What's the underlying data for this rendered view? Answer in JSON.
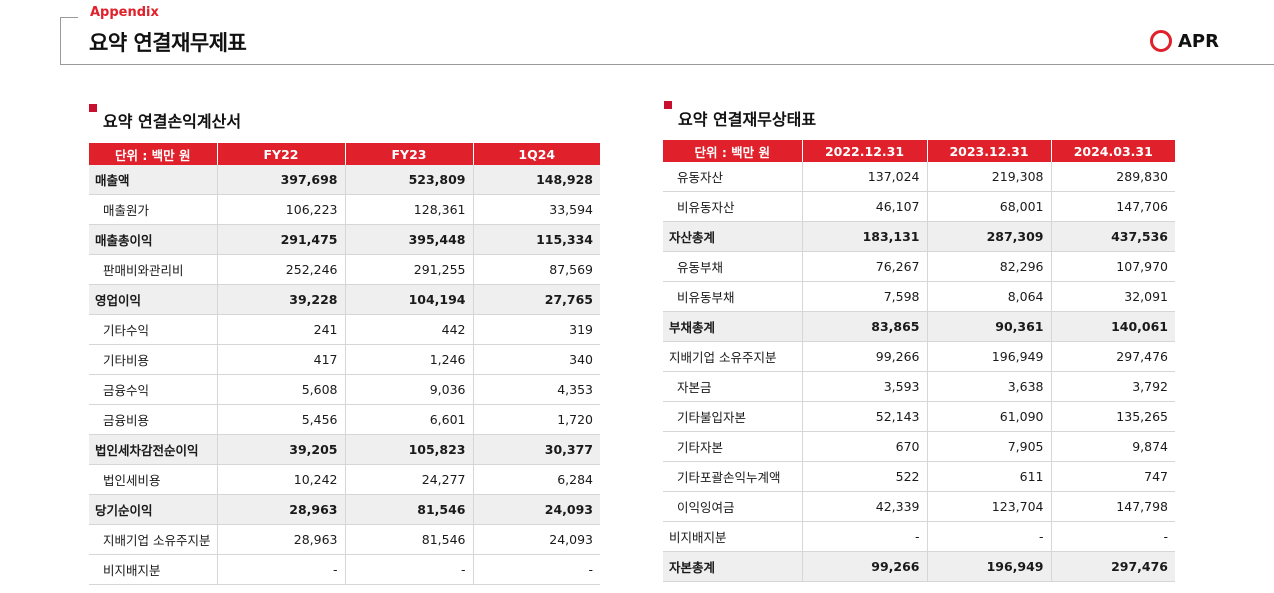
{
  "header": {
    "section": "Appendix",
    "title": "요약 연결재무제표",
    "logo": "APR"
  },
  "income": {
    "title": "요약 연결손익계산서",
    "columns": [
      "단위 : 백만 원",
      "FY22",
      "FY23",
      "1Q24"
    ],
    "rows": [
      {
        "label": "매출액",
        "values": [
          "397,698",
          "523,809",
          "148,928"
        ],
        "style": "bold"
      },
      {
        "label": "매출원가",
        "values": [
          "106,223",
          "128,361",
          "33,594"
        ],
        "style": "sub"
      },
      {
        "label": "매출총이익",
        "values": [
          "291,475",
          "395,448",
          "115,334"
        ],
        "style": "bold"
      },
      {
        "label": "판매비와관리비",
        "values": [
          "252,246",
          "291,255",
          "87,569"
        ],
        "style": "sub"
      },
      {
        "label": "영업이익",
        "values": [
          "39,228",
          "104,194",
          "27,765"
        ],
        "style": "bold"
      },
      {
        "label": "기타수익",
        "values": [
          "241",
          "442",
          "319"
        ],
        "style": "sub"
      },
      {
        "label": "기타비용",
        "values": [
          "417",
          "1,246",
          "340"
        ],
        "style": "sub"
      },
      {
        "label": "금융수익",
        "values": [
          "5,608",
          "9,036",
          "4,353"
        ],
        "style": "sub"
      },
      {
        "label": "금융비용",
        "values": [
          "5,456",
          "6,601",
          "1,720"
        ],
        "style": "sub"
      },
      {
        "label": "법인세차감전순이익",
        "values": [
          "39,205",
          "105,823",
          "30,377"
        ],
        "style": "bold"
      },
      {
        "label": "법인세비용",
        "values": [
          "10,242",
          "24,277",
          "6,284"
        ],
        "style": "sub"
      },
      {
        "label": "당기순이익",
        "values": [
          "28,963",
          "81,546",
          "24,093"
        ],
        "style": "bold"
      },
      {
        "label": "지배기업 소유주지분",
        "values": [
          "28,963",
          "81,546",
          "24,093"
        ],
        "style": "sub"
      },
      {
        "label": "비지배지분",
        "values": [
          "-",
          "-",
          "-"
        ],
        "style": "sub"
      }
    ]
  },
  "balance": {
    "title": "요약 연결재무상태표",
    "columns": [
      "단위 : 백만 원",
      "2022.12.31",
      "2023.12.31",
      "2024.03.31"
    ],
    "rows": [
      {
        "label": "유동자산",
        "values": [
          "137,024",
          "219,308",
          "289,830"
        ],
        "style": "sub"
      },
      {
        "label": "비유동자산",
        "values": [
          "46,107",
          "68,001",
          "147,706"
        ],
        "style": "sub"
      },
      {
        "label": "자산총계",
        "values": [
          "183,131",
          "287,309",
          "437,536"
        ],
        "style": "bold"
      },
      {
        "label": "유동부채",
        "values": [
          "76,267",
          "82,296",
          "107,970"
        ],
        "style": "sub"
      },
      {
        "label": "비유동부채",
        "values": [
          "7,598",
          "8,064",
          "32,091"
        ],
        "style": "sub"
      },
      {
        "label": "부채총계",
        "values": [
          "83,865",
          "90,361",
          "140,061"
        ],
        "style": "bold"
      },
      {
        "label": "지배기업 소유주지분",
        "values": [
          "99,266",
          "196,949",
          "297,476"
        ],
        "style": "plain"
      },
      {
        "label": "자본금",
        "values": [
          "3,593",
          "3,638",
          "3,792"
        ],
        "style": "sub"
      },
      {
        "label": "기타불입자본",
        "values": [
          "52,143",
          "61,090",
          "135,265"
        ],
        "style": "sub"
      },
      {
        "label": "기타자본",
        "values": [
          "670",
          "7,905",
          "9,874"
        ],
        "style": "sub"
      },
      {
        "label": "기타포괄손익누계액",
        "values": [
          "522",
          "611",
          "747"
        ],
        "style": "sub"
      },
      {
        "label": "이익잉여금",
        "values": [
          "42,339",
          "123,704",
          "147,798"
        ],
        "style": "sub"
      },
      {
        "label": "비지배지분",
        "values": [
          "-",
          "-",
          "-"
        ],
        "style": "plain"
      },
      {
        "label": "자본총계",
        "values": [
          "99,266",
          "196,949",
          "297,476"
        ],
        "style": "bold"
      }
    ]
  },
  "colors": {
    "accent": "#e0202a",
    "row_bold_bg": "#efefef"
  }
}
